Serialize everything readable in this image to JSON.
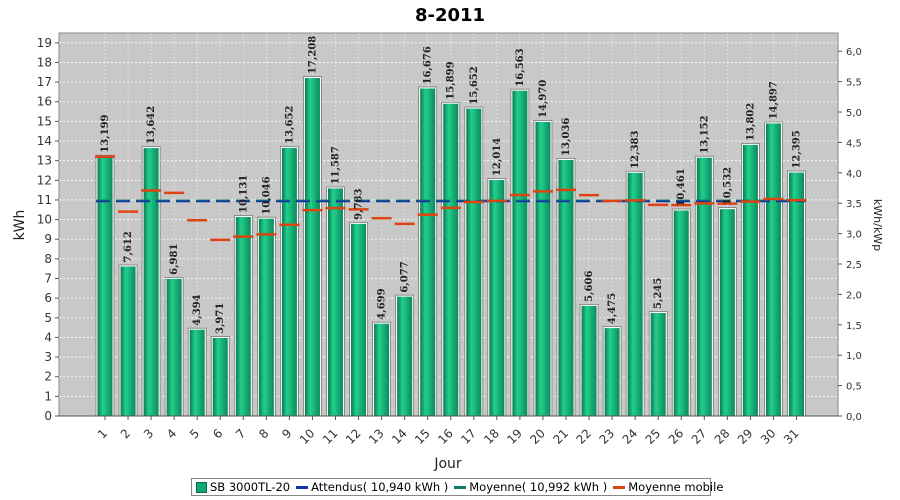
{
  "chart_data": {
    "type": "bar",
    "title": "8-2011",
    "xlabel": "Jour",
    "ylabel": "kWh",
    "y2label": "kWh/kWp",
    "ylim": [
      0,
      19.5
    ],
    "y2lim": [
      0,
      6.3
    ],
    "categories": [
      "1",
      "2",
      "3",
      "4",
      "5",
      "6",
      "7",
      "8",
      "9",
      "10",
      "11",
      "12",
      "13",
      "14",
      "15",
      "16",
      "17",
      "18",
      "19",
      "20",
      "21",
      "22",
      "23",
      "24",
      "25",
      "26",
      "27",
      "28",
      "29",
      "30",
      "31"
    ],
    "y_ticks": [
      "0",
      "1",
      "2",
      "3",
      "4",
      "5",
      "6",
      "7",
      "8",
      "9",
      "10",
      "11",
      "12",
      "13",
      "14",
      "15",
      "16",
      "17",
      "18",
      "19"
    ],
    "y2_ticks": [
      "0,0",
      "0,5",
      "1,0",
      "1,5",
      "2,0",
      "2,5",
      "3,0",
      "3,5",
      "4,0",
      "4,5",
      "5,0",
      "5,5",
      "6,0"
    ],
    "series": [
      {
        "name": "SB 3000TL-20",
        "color": "#0fa872",
        "values": [
          13.199,
          7.612,
          13.642,
          6.981,
          4.394,
          3.971,
          10.131,
          10.046,
          13.652,
          17.208,
          11.587,
          9.783,
          4.699,
          6.077,
          16.676,
          15.899,
          15.652,
          12.014,
          16.563,
          14.97,
          13.036,
          5.606,
          4.475,
          12.383,
          5.245,
          10.461,
          13.152,
          10.532,
          13.802,
          14.897,
          12.395
        ],
        "labels": [
          "13,199",
          "7,612",
          "13,642",
          "6,981",
          "4,394",
          "3,971",
          "10,131",
          "10,046",
          "13,652",
          "17,208",
          "11,587",
          "9,783",
          "4,699",
          "6,077",
          "16,676",
          "15,899",
          "15,652",
          "12,014",
          "16,563",
          "14,970",
          "13,036",
          "5,606",
          "4,475",
          "12,383",
          "5,245",
          "10,461",
          "13,152",
          "10,532",
          "13,802",
          "14,897",
          "12,395"
        ]
      },
      {
        "name": "Attendus( 10,940 kWh )",
        "color": "#1133aa",
        "value": 10.94
      },
      {
        "name": "Moyenne( 10,992 kWh )",
        "color": "#0f7a6a",
        "value": 10.992
      },
      {
        "name": "Moyenne mobile",
        "color": "#dd4411",
        "values": [
          13.199,
          10.406,
          11.484,
          11.359,
          9.966,
          8.967,
          9.133,
          9.247,
          9.737,
          10.484,
          10.584,
          10.517,
          10.07,
          9.785,
          10.244,
          10.597,
          10.894,
          10.956,
          11.251,
          11.437,
          11.513,
          11.244,
          10.95,
          10.977,
          10.747,
          10.736,
          10.824,
          10.813,
          10.916,
          11.048,
          10.992
        ]
      }
    ],
    "grid": true,
    "legend_position": "bottom"
  }
}
